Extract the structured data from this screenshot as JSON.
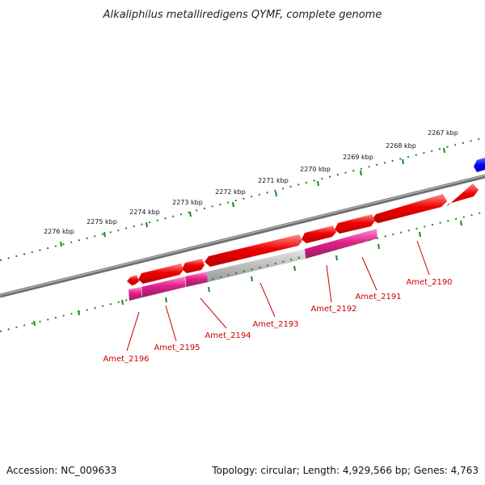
{
  "title": "Alkaliphilus metalliredigens QYMF, complete genome",
  "footer": {
    "accession": "Accession: NC_009633",
    "summary": "Topology: circular; Length: 4,929,566 bp; Genes: 4,763"
  },
  "colors": {
    "backbone": "#808080",
    "ticks": "#1a8a1a",
    "forward_gene": "#ee0000",
    "reverse_gene": "#e0208c",
    "gray_gene": "#bdbdbd",
    "blue_gene": "#0000ff",
    "label": "#cc0000"
  },
  "kbp_labels": [
    {
      "id": "2267",
      "text": "2267 kbp"
    },
    {
      "id": "2268",
      "text": "2268 kbp"
    },
    {
      "id": "2269",
      "text": "2269 kbp"
    },
    {
      "id": "2270",
      "text": "2270 kbp"
    },
    {
      "id": "2271",
      "text": "2271 kbp"
    },
    {
      "id": "2272",
      "text": "2272 kbp"
    },
    {
      "id": "2273",
      "text": "2273 kbp"
    },
    {
      "id": "2274",
      "text": "2274 kbp"
    },
    {
      "id": "2275",
      "text": "2275 kbp"
    },
    {
      "id": "2276",
      "text": "2276 kbp"
    }
  ],
  "gene_labels": [
    {
      "id": "2190",
      "text": "Amet_2190"
    },
    {
      "id": "2191",
      "text": "Amet_2191"
    },
    {
      "id": "2192",
      "text": "Amet_2192"
    },
    {
      "id": "2193",
      "text": "Amet_2193"
    },
    {
      "id": "2194",
      "text": "Amet_2194"
    },
    {
      "id": "2195",
      "text": "Amet_2195"
    },
    {
      "id": "2196",
      "text": "Amet_2196"
    }
  ]
}
